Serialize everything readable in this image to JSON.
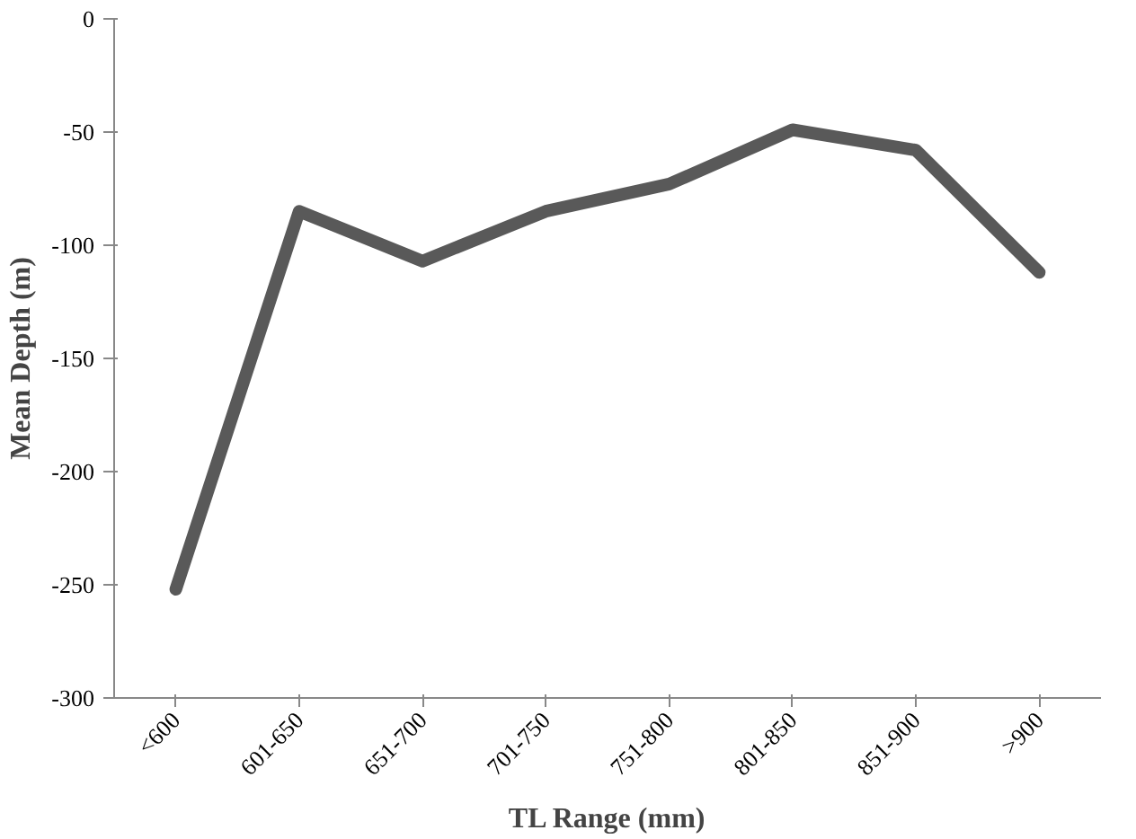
{
  "chart_data": {
    "type": "line",
    "xlabel": "TL Range (mm)",
    "ylabel": "Mean Depth (m)",
    "categories": [
      "<600",
      "601-650",
      "651-700",
      "701-750",
      "751-800",
      "801-850",
      "851-900",
      ">900"
    ],
    "series": [
      {
        "color": "#595959",
        "values": [
          -252,
          -85,
          -107,
          -85,
          -73,
          -49,
          -58,
          -112
        ]
      }
    ],
    "ylim": [
      -300,
      0
    ],
    "yticks": [
      -300,
      -250,
      -200,
      -150,
      -100,
      -50,
      0
    ],
    "grid": false,
    "marker": "none",
    "line_style": "solid"
  }
}
